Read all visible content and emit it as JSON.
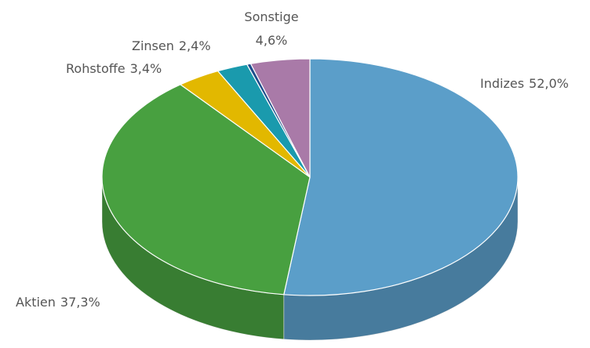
{
  "chart_data": {
    "type": "pie",
    "categories": [
      "Indizes",
      "Aktien",
      "Rohstoffe",
      "Zinsen",
      null,
      "Sonstige"
    ],
    "values": [
      52.0,
      37.3,
      3.4,
      2.4,
      0.3,
      4.6
    ],
    "value_labels": [
      "52,0%",
      "37,3%",
      "3,4%",
      "2,4%",
      null,
      "4,6%"
    ],
    "colors": [
      "#5b9ec9",
      "#48a040",
      "#e2b800",
      "#1a9aad",
      "#1f4e8c",
      "#a97aa8"
    ]
  }
}
